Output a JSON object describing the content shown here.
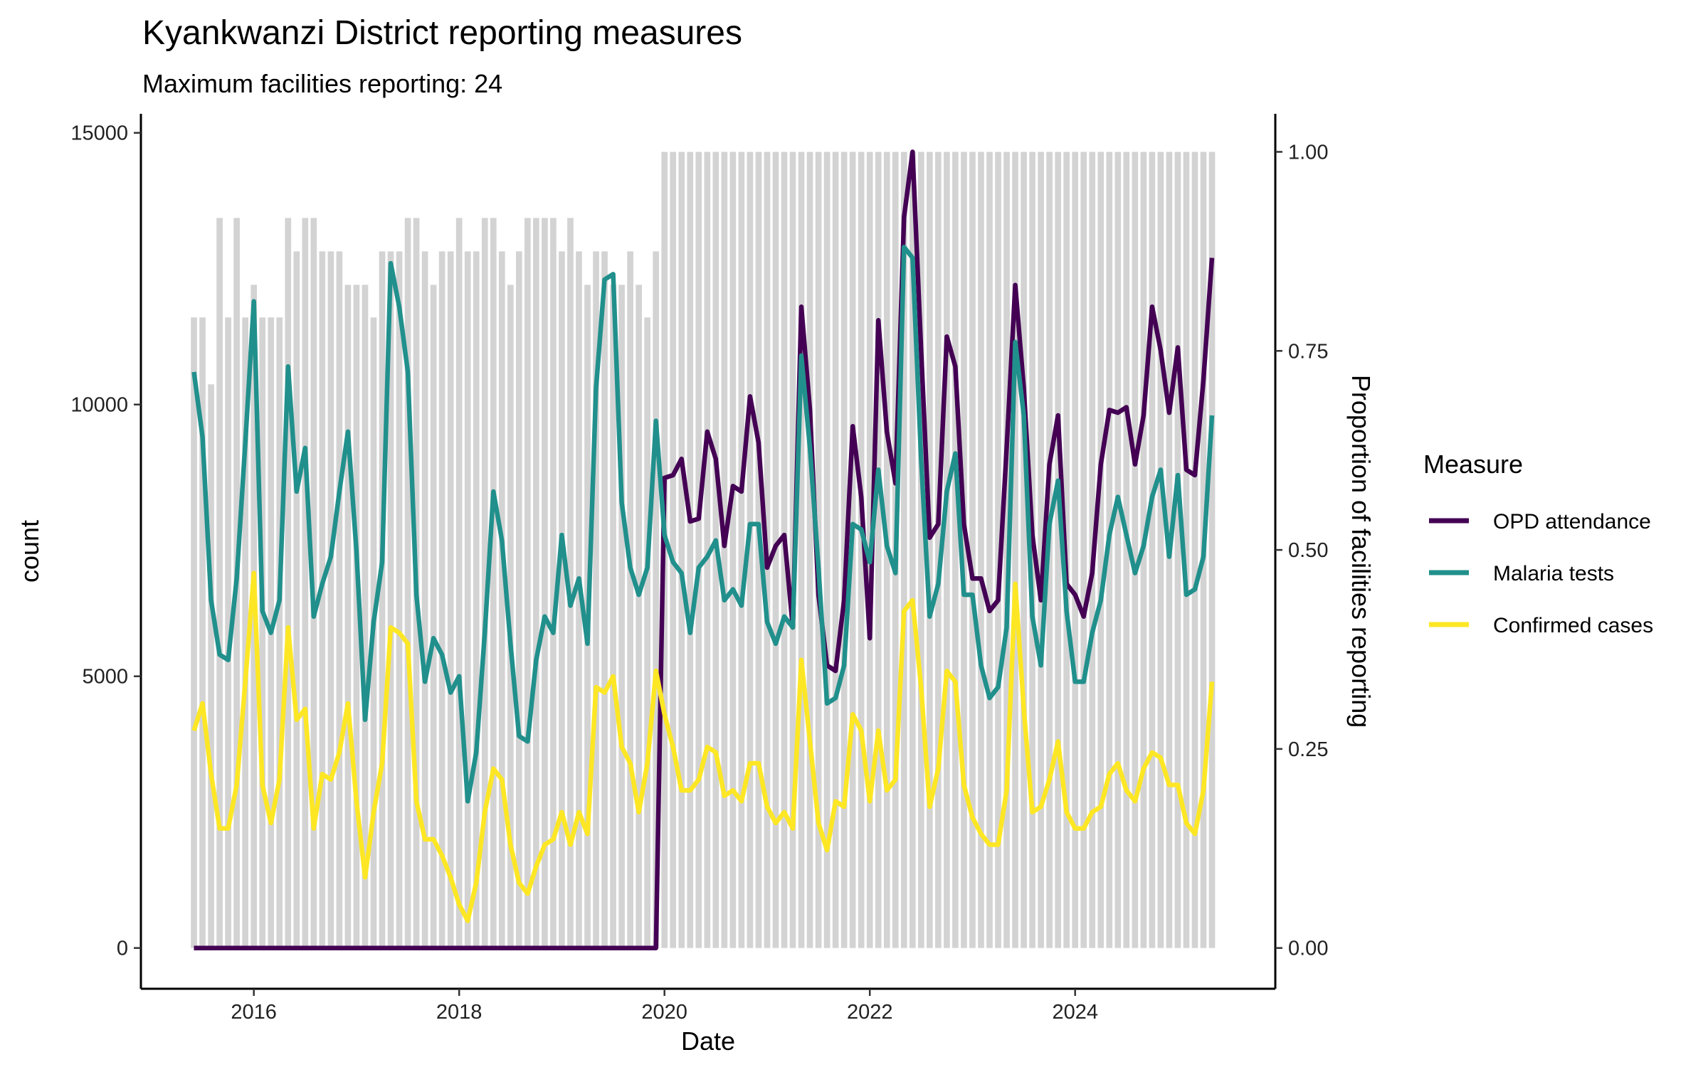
{
  "chart_data": {
    "type": "line",
    "title": "Kyankwanzi District reporting measures",
    "subtitle": "Maximum facilities reporting: 24",
    "xlabel": "Date",
    "ylabel": "count",
    "y2label": "Proportion of facilities reporting",
    "x_ticks": [
      "2016",
      "2018",
      "2020",
      "2022",
      "2024"
    ],
    "x_tick_values": [
      2016,
      2018,
      2020,
      2022,
      2024
    ],
    "xlim": [
      2014.9,
      2025.95
    ],
    "y_ticks": [
      "0",
      "5000",
      "10000",
      "15000"
    ],
    "y_tick_values": [
      0,
      5000,
      10000,
      15000
    ],
    "ylim": [
      -750,
      15350
    ],
    "y2_ticks": [
      "0.00",
      "0.25",
      "0.50",
      "0.75",
      "1.00"
    ],
    "y2_tick_values": [
      0,
      0.25,
      0.5,
      0.75,
      1.0
    ],
    "start": {
      "year": 2015,
      "month": 6
    },
    "n_months": 120,
    "legend_title": "Measure",
    "legend_position": "right",
    "colors": {
      "opd": "#440154",
      "tests": "#21908C",
      "cases": "#FDE725",
      "bars": "#D3D3D3"
    },
    "series": [
      {
        "name": "OPD attendance",
        "key": "opd",
        "values": [
          0,
          0,
          0,
          0,
          0,
          0,
          0,
          0,
          0,
          0,
          0,
          0,
          0,
          0,
          0,
          0,
          0,
          0,
          0,
          0,
          0,
          0,
          0,
          0,
          0,
          0,
          0,
          0,
          0,
          0,
          0,
          0,
          0,
          0,
          0,
          0,
          0,
          0,
          0,
          0,
          0,
          0,
          0,
          0,
          0,
          0,
          0,
          0,
          0,
          0,
          0,
          0,
          0,
          0,
          0,
          8650,
          8700,
          9000,
          7850,
          7900,
          9500,
          9000,
          7400,
          8500,
          8400,
          10150,
          9300,
          7000,
          7400,
          7600,
          5900,
          11800,
          9900,
          6500,
          5200,
          5100,
          6400,
          9600,
          8300,
          5700,
          11550,
          9500,
          8550,
          13450,
          14650,
          11000,
          7550,
          7800,
          11250,
          10700,
          7800,
          6800,
          6800,
          6200,
          6400,
          9200,
          12200,
          10300,
          7600,
          6400,
          8900,
          9800,
          6700,
          6500,
          6100,
          6900,
          8900,
          9900,
          9850,
          9950,
          8900,
          9800,
          11800,
          11000,
          9850,
          11050,
          8800,
          8700,
          10450,
          12700
        ]
      },
      {
        "name": "Malaria tests",
        "key": "tests",
        "values": [
          10600,
          9400,
          6400,
          5400,
          5300,
          6800,
          9300,
          11900,
          6200,
          5800,
          6400,
          10700,
          8400,
          9200,
          6100,
          6700,
          7200,
          8400,
          9500,
          7300,
          4200,
          6000,
          7100,
          12600,
          11800,
          10600,
          6500,
          4900,
          5700,
          5400,
          4700,
          5000,
          2700,
          3600,
          5800,
          8400,
          7500,
          5600,
          3900,
          3800,
          5300,
          6100,
          5800,
          7600,
          6300,
          6800,
          5600,
          10300,
          12300,
          12400,
          8200,
          7000,
          6500,
          7000,
          9700,
          7600,
          7100,
          6900,
          5800,
          7000,
          7200,
          7500,
          6400,
          6600,
          6300,
          7800,
          7800,
          6000,
          5600,
          6100,
          5900,
          10900,
          9200,
          7000,
          4500,
          4600,
          5200,
          7800,
          7700,
          7100,
          8800,
          7400,
          6900,
          12900,
          12700,
          9000,
          6100,
          6700,
          8400,
          9100,
          6500,
          6500,
          5200,
          4600,
          4800,
          5900,
          11150,
          9800,
          6100,
          5200,
          7800,
          8600,
          6200,
          4900,
          4900,
          5800,
          6400,
          7600,
          8300,
          7600,
          6900,
          7400,
          8300,
          8800,
          7200,
          8700,
          6500,
          6600,
          7200,
          9800
        ]
      },
      {
        "name": "Confirmed cases",
        "key": "cases",
        "values": [
          4000,
          4500,
          3200,
          2200,
          2200,
          3000,
          4900,
          6900,
          3000,
          2300,
          3100,
          5900,
          4200,
          4400,
          2200,
          3200,
          3100,
          3600,
          4500,
          2700,
          1300,
          2500,
          3400,
          5900,
          5800,
          5600,
          2700,
          2000,
          2000,
          1700,
          1300,
          800,
          500,
          1200,
          2500,
          3300,
          3100,
          1900,
          1200,
          1000,
          1500,
          1900,
          2000,
          2500,
          1900,
          2500,
          2100,
          4800,
          4700,
          5000,
          3700,
          3400,
          2500,
          3400,
          5100,
          4300,
          3700,
          2900,
          2900,
          3100,
          3700,
          3600,
          2800,
          2900,
          2700,
          3400,
          3400,
          2600,
          2300,
          2500,
          2200,
          5300,
          3800,
          2300,
          1800,
          2700,
          2600,
          4300,
          4000,
          2700,
          4000,
          2900,
          3100,
          6200,
          6400,
          4800,
          2600,
          3300,
          5100,
          4900,
          3000,
          2400,
          2100,
          1900,
          1900,
          2900,
          6700,
          4400,
          2500,
          2600,
          3100,
          3800,
          2500,
          2200,
          2200,
          2500,
          2600,
          3200,
          3400,
          2900,
          2700,
          3300,
          3600,
          3500,
          3000,
          3000,
          2300,
          2100,
          2900,
          4900
        ]
      }
    ],
    "reporting_proportion": [
      0.792,
      0.792,
      0.708,
      0.917,
      0.792,
      0.917,
      0.792,
      0.833,
      0.792,
      0.792,
      0.792,
      0.917,
      0.875,
      0.917,
      0.917,
      0.875,
      0.875,
      0.875,
      0.833,
      0.833,
      0.833,
      0.792,
      0.875,
      0.875,
      0.875,
      0.917,
      0.917,
      0.875,
      0.833,
      0.875,
      0.875,
      0.917,
      0.875,
      0.875,
      0.917,
      0.917,
      0.875,
      0.833,
      0.875,
      0.917,
      0.917,
      0.917,
      0.917,
      0.875,
      0.917,
      0.875,
      0.833,
      0.875,
      0.875,
      0.833,
      0.833,
      0.875,
      0.833,
      0.792,
      0.875,
      1,
      1,
      1,
      1,
      1,
      1,
      1,
      1,
      1,
      1,
      1,
      1,
      1,
      1,
      1,
      1,
      1,
      1,
      1,
      1,
      1,
      1,
      1,
      1,
      1,
      1,
      1,
      1,
      1,
      1,
      1,
      1,
      1,
      1,
      1,
      1,
      1,
      1,
      1,
      1,
      1,
      1,
      1,
      1,
      1,
      1,
      1,
      1,
      1,
      1,
      1,
      1,
      1,
      1,
      1,
      1,
      1,
      1,
      1,
      1,
      1,
      1,
      1,
      1,
      1
    ]
  }
}
